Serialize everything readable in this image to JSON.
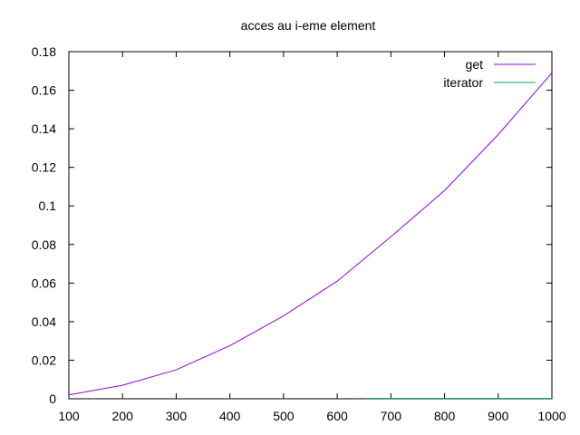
{
  "chart_data": {
    "type": "line",
    "title": "acces au i-eme element",
    "xlabel": "",
    "ylabel": "",
    "xlim": [
      100,
      1000
    ],
    "ylim": [
      0,
      0.18
    ],
    "x_ticks": [
      100,
      200,
      300,
      400,
      500,
      600,
      700,
      800,
      900,
      1000
    ],
    "y_ticks": [
      0,
      0.02,
      0.04,
      0.06,
      0.08,
      0.1,
      0.12,
      0.14,
      0.16,
      0.18
    ],
    "x_tick_labels": [
      "100",
      "200",
      "300",
      "400",
      "500",
      "600",
      "700",
      "800",
      "900",
      "1000"
    ],
    "y_tick_labels": [
      "0",
      "0.02",
      "0.04",
      "0.06",
      "0.08",
      "0.1",
      "0.12",
      "0.14",
      "0.16",
      "0.18"
    ],
    "grid": false,
    "legend_position": "top-right",
    "series": [
      {
        "name": "get",
        "color": "#9400d3",
        "x": [
          100,
          200,
          300,
          400,
          500,
          600,
          700,
          800,
          900,
          1000
        ],
        "values": [
          0.002,
          0.007,
          0.015,
          0.0275,
          0.043,
          0.061,
          0.084,
          0.108,
          0.137,
          0.169
        ]
      },
      {
        "name": "iterator",
        "color": "#009e73",
        "x": [
          650,
          700,
          800,
          900,
          1000
        ],
        "values": [
          0.0002,
          0.0002,
          0.0002,
          0.0002,
          0.0002
        ]
      }
    ]
  }
}
